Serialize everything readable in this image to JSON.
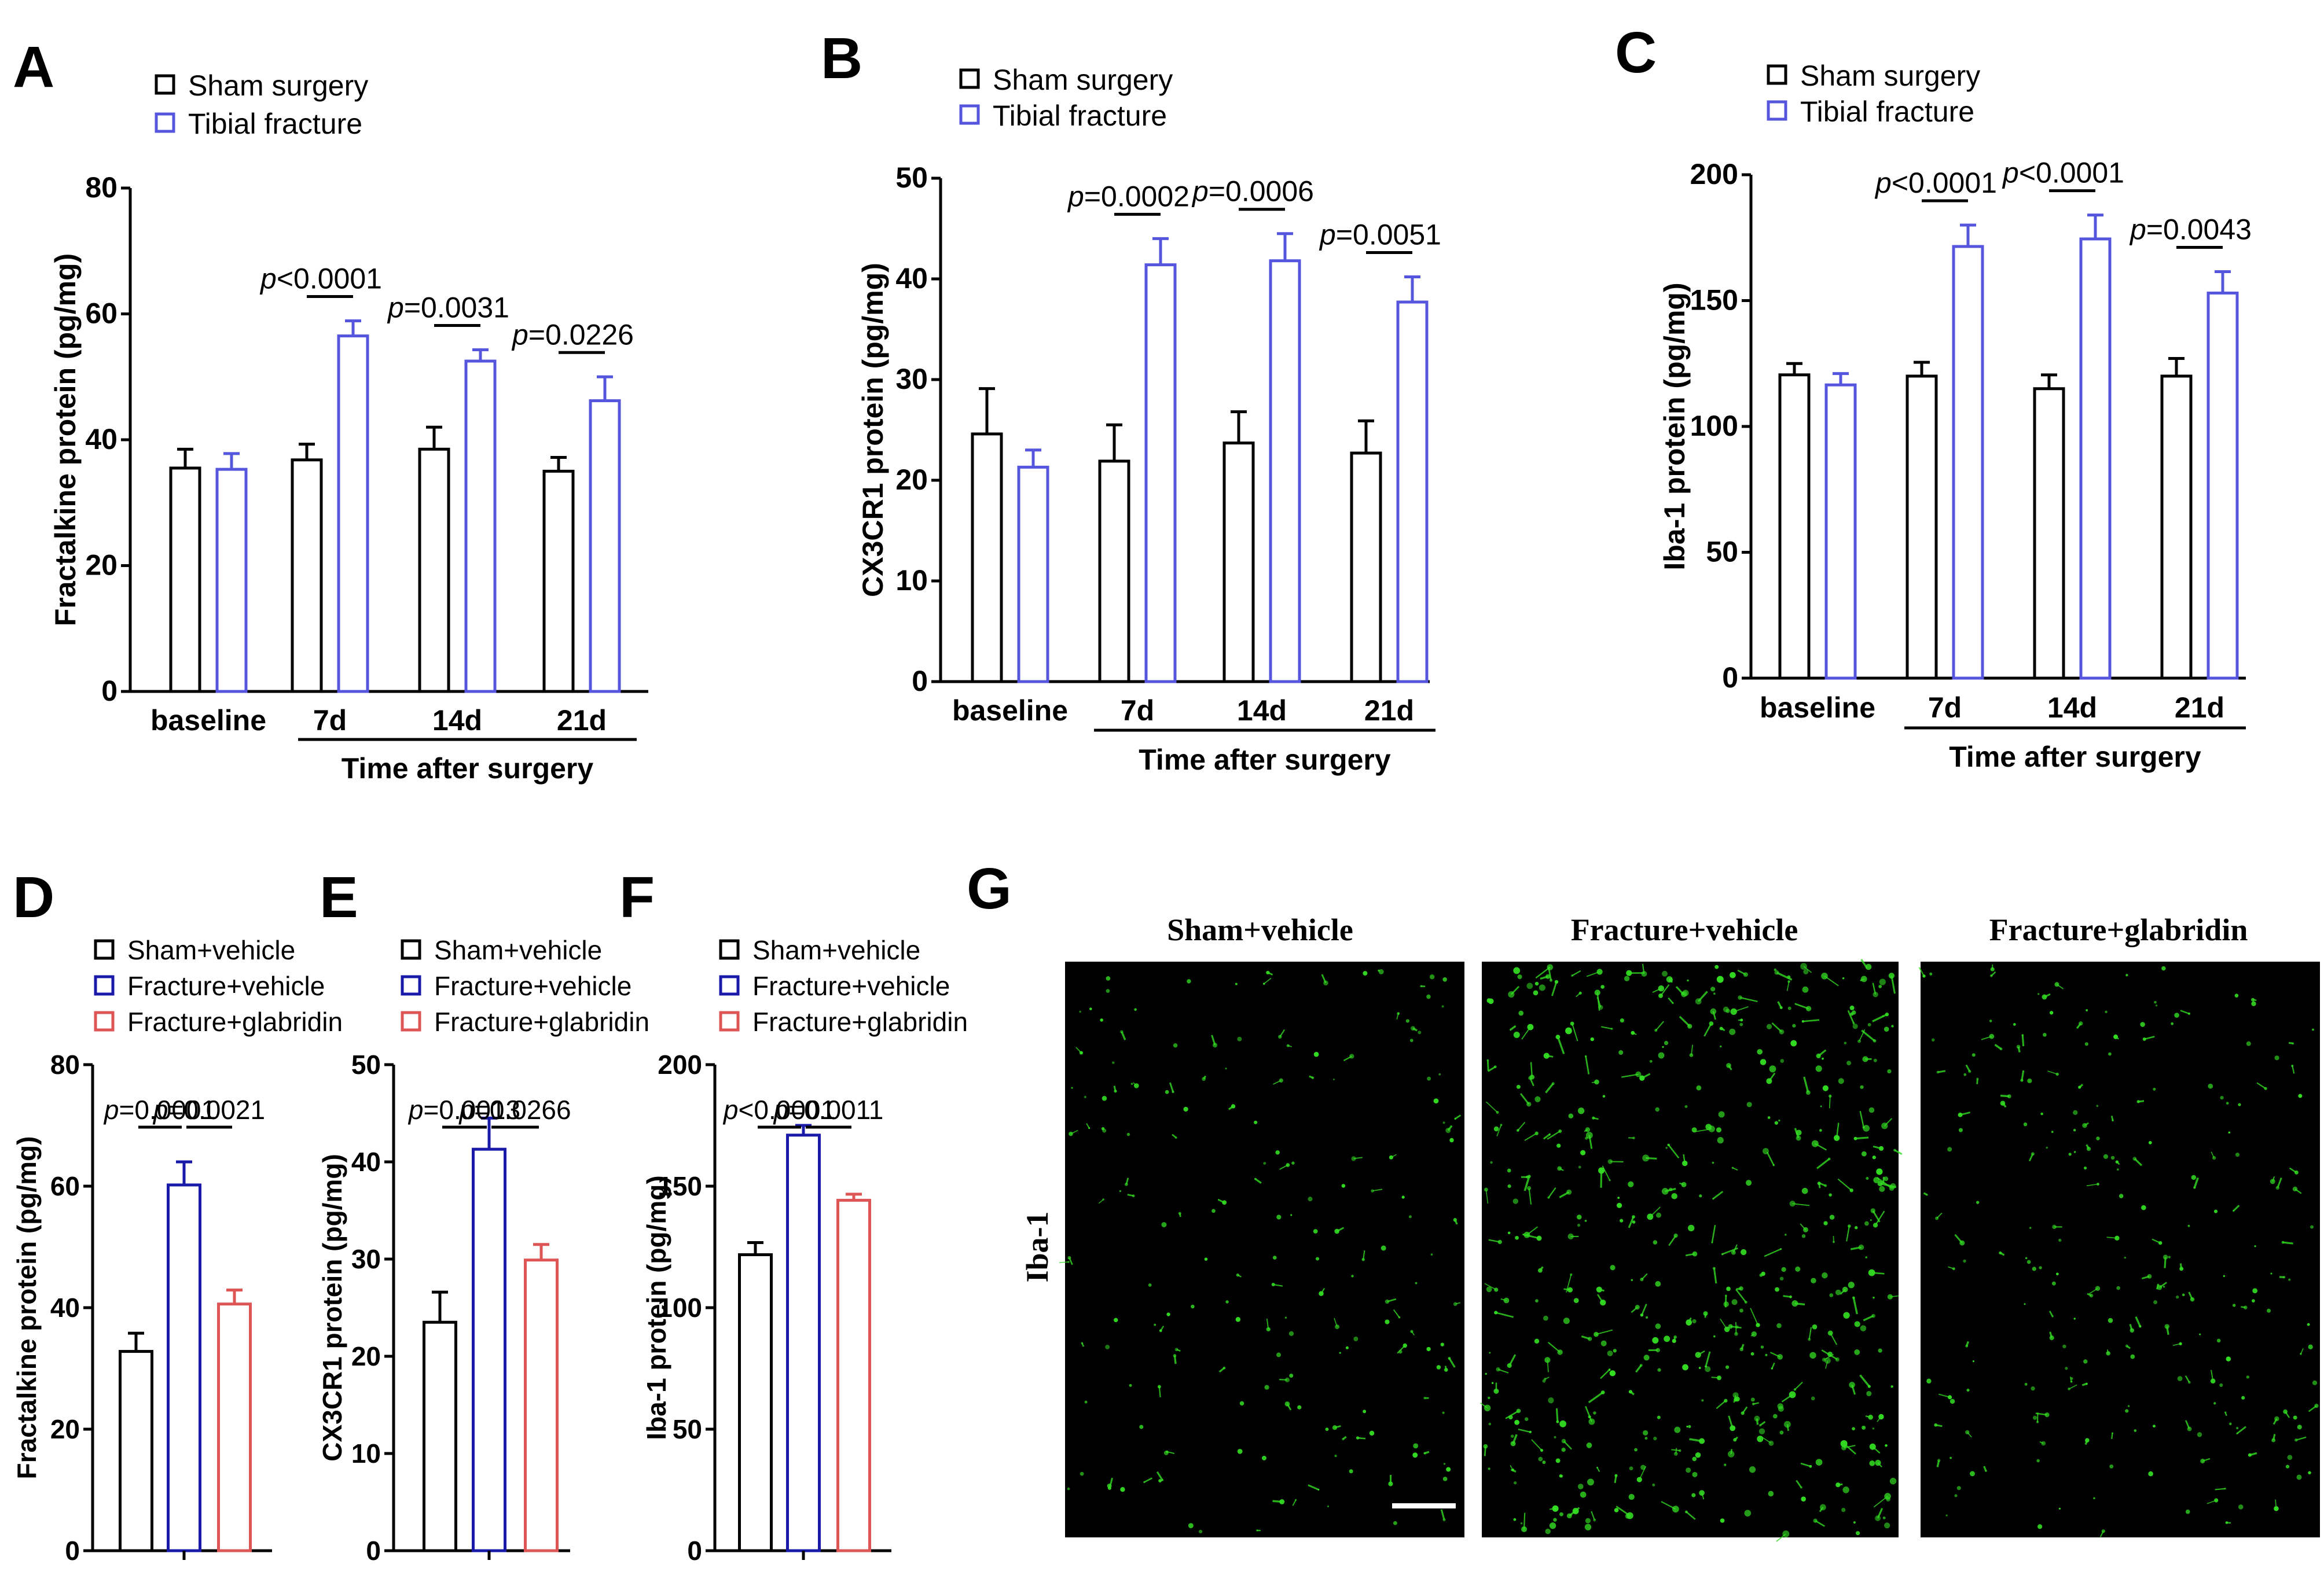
{
  "colors": {
    "sham": "#000000",
    "fracture_blue_light": "#5555dd",
    "fracture_blue_dark": "#1a1aa8",
    "glabridin_red": "#dd5555",
    "micrograph_bg": "#000000",
    "microglia_green": "#33dd22",
    "scale_bar": "#ffffff"
  },
  "panels": {
    "A": {
      "letter": "A"
    },
    "B": {
      "letter": "B"
    },
    "C": {
      "letter": "C"
    },
    "D": {
      "letter": "D"
    },
    "E": {
      "letter": "E"
    },
    "F": {
      "letter": "F"
    },
    "G": {
      "letter": "G"
    }
  },
  "micrograph": {
    "row_label": "Iba-1",
    "columns": [
      "Sham+vehicle",
      "Fracture+vehicle",
      "Fracture+glabridin"
    ],
    "density": [
      0.35,
      1.0,
      0.45
    ],
    "has_scale_bar": true
  },
  "chart_data": [
    {
      "panel": "A",
      "type": "bar",
      "ylabel": "Fractalkine protein (pg/mg)",
      "xlabel": "Time after surgery",
      "categories": [
        "baseline",
        "7d",
        "14d",
        "21d"
      ],
      "ylim": [
        0,
        80
      ],
      "yticks": [
        0,
        20,
        40,
        60,
        80
      ],
      "legend_position": "top-left",
      "series": [
        {
          "name": "Sham surgery",
          "color": "#000000",
          "values": [
            35.5,
            36.8,
            38.5,
            35.0
          ],
          "errors": [
            3.0,
            2.5,
            3.5,
            2.2
          ]
        },
        {
          "name": "Tibial fracture",
          "color": "#5555dd",
          "values": [
            35.3,
            56.5,
            52.5,
            46.2
          ],
          "errors": [
            2.5,
            2.4,
            1.8,
            3.8
          ]
        }
      ],
      "annotations": [
        {
          "category": "7d",
          "p": "<0.0001"
        },
        {
          "category": "14d",
          "p": "=0.0031"
        },
        {
          "category": "21d",
          "p": "=0.0226"
        }
      ]
    },
    {
      "panel": "B",
      "type": "bar",
      "ylabel": "CX3CR1 protein (pg/mg)",
      "xlabel": "Time after surgery",
      "categories": [
        "baseline",
        "7d",
        "14d",
        "21d"
      ],
      "ylim": [
        0,
        50
      ],
      "yticks": [
        0,
        10,
        20,
        30,
        40,
        50
      ],
      "legend_position": "top-left",
      "series": [
        {
          "name": "Sham surgery",
          "color": "#000000",
          "values": [
            24.6,
            21.9,
            23.7,
            22.7
          ],
          "errors": [
            4.5,
            3.6,
            3.1,
            3.2
          ]
        },
        {
          "name": "Tibial fracture",
          "color": "#5555dd",
          "values": [
            21.3,
            41.4,
            41.8,
            37.7
          ],
          "errors": [
            1.7,
            2.6,
            2.7,
            2.5
          ]
        }
      ],
      "annotations": [
        {
          "category": "7d",
          "p": "=0.0002"
        },
        {
          "category": "14d",
          "p": "=0.0006"
        },
        {
          "category": "21d",
          "p": "=0.0051"
        }
      ]
    },
    {
      "panel": "C",
      "type": "bar",
      "ylabel": "Iba-1 protein (pg/mg)",
      "xlabel": "Time after surgery",
      "categories": [
        "baseline",
        "7d",
        "14d",
        "21d"
      ],
      "ylim": [
        0,
        200
      ],
      "yticks": [
        0,
        50,
        100,
        150,
        200
      ],
      "legend_position": "top-left",
      "series": [
        {
          "name": "Sham surgery",
          "color": "#000000",
          "values": [
            120.5,
            120.0,
            115.0,
            120.0
          ],
          "errors": [
            4.5,
            5.5,
            5.5,
            7.0
          ]
        },
        {
          "name": "Tibial fracture",
          "color": "#5555dd",
          "values": [
            116.5,
            171.5,
            174.5,
            153.0
          ],
          "errors": [
            4.5,
            8.5,
            9.5,
            8.5
          ]
        }
      ],
      "annotations": [
        {
          "category": "7d",
          "p": "<0.0001"
        },
        {
          "category": "14d",
          "p": "<0.0001"
        },
        {
          "category": "21d",
          "p": "=0.0043"
        }
      ]
    },
    {
      "panel": "D",
      "type": "bar",
      "ylabel": "Fractalkine protein (pg/mg)",
      "categories": [
        "Sham+vehicle",
        "Fracture+vehicle",
        "Fracture+glabridin"
      ],
      "ylim": [
        0,
        80
      ],
      "yticks": [
        0,
        20,
        40,
        60,
        80
      ],
      "legend_position": "top-left",
      "values": [
        32.8,
        60.2,
        40.6
      ],
      "errors": [
        3.0,
        3.8,
        2.3
      ],
      "colors": [
        "#000000",
        "#1a1aa8",
        "#dd5555"
      ],
      "annotations": [
        {
          "from": 0,
          "to": 1,
          "p": "=0.0001"
        },
        {
          "from": 1,
          "to": 2,
          "p": "=0.0021"
        }
      ]
    },
    {
      "panel": "E",
      "type": "bar",
      "ylabel": "CX3CR1 protein (pg/mg)",
      "categories": [
        "Sham+vehicle",
        "Fracture+vehicle",
        "Fracture+glabridin"
      ],
      "ylim": [
        0,
        50
      ],
      "yticks": [
        0,
        10,
        20,
        30,
        40,
        50
      ],
      "legend_position": "top-left",
      "values": [
        23.5,
        41.3,
        29.9
      ],
      "errors": [
        3.1,
        3.2,
        1.6
      ],
      "colors": [
        "#000000",
        "#1a1aa8",
        "#dd5555"
      ],
      "annotations": [
        {
          "from": 0,
          "to": 1,
          "p": "=0.0013"
        },
        {
          "from": 1,
          "to": 2,
          "p": "=0.0266"
        }
      ]
    },
    {
      "panel": "F",
      "type": "bar",
      "ylabel": "Iba-1 protein (pg/mg)",
      "categories": [
        "Sham+vehicle",
        "Fracture+vehicle",
        "Fracture+glabridin"
      ],
      "ylim": [
        0,
        200
      ],
      "yticks": [
        0,
        50,
        100,
        150,
        200
      ],
      "legend_position": "top-left",
      "values": [
        121.8,
        171.0,
        144.2
      ],
      "errors": [
        5.0,
        4.0,
        2.5
      ],
      "colors": [
        "#000000",
        "#1a1aa8",
        "#dd5555"
      ],
      "annotations": [
        {
          "from": 0,
          "to": 1,
          "p": "<0.0001"
        },
        {
          "from": 1,
          "to": 2,
          "p": "=0.0011"
        }
      ]
    }
  ]
}
